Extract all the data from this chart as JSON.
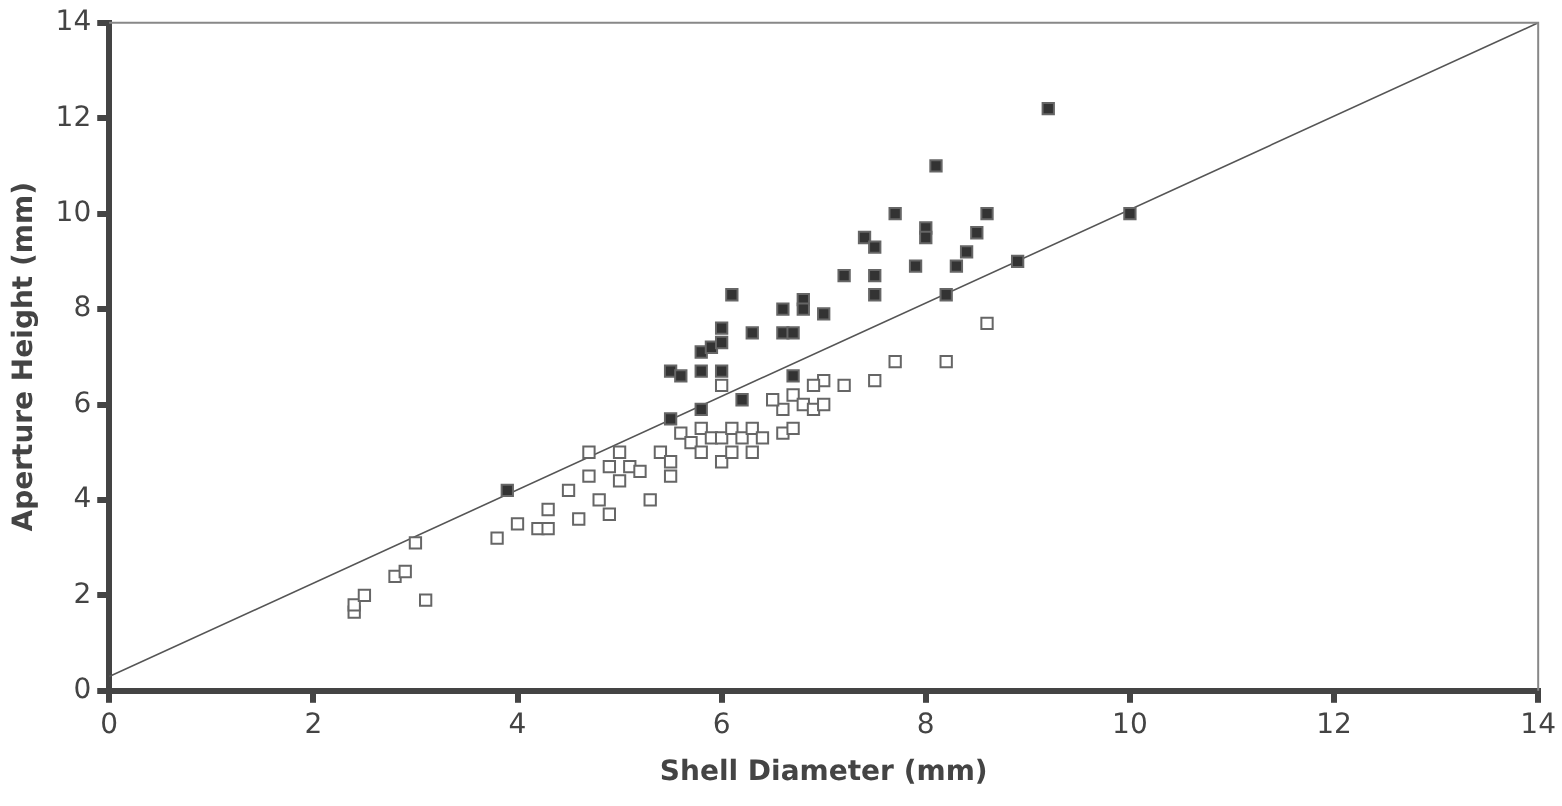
{
  "chart_data": {
    "type": "scatter",
    "xlabel": "Shell Diameter (mm)",
    "ylabel": "Aperture Height (mm)",
    "xlim": [
      0,
      14
    ],
    "ylim": [
      0,
      14
    ],
    "xticks": [
      0,
      2,
      4,
      6,
      8,
      10,
      12,
      14
    ],
    "yticks": [
      0,
      2,
      4,
      6,
      8,
      10,
      12,
      14
    ],
    "grid": false,
    "legend": false,
    "marker": "square",
    "series": [
      {
        "color": "#333333",
        "x": [
          3.9,
          5.5,
          5.5,
          5.6,
          5.8,
          5.8,
          5.9,
          6.0,
          6.0,
          6.0,
          6.1,
          6.2,
          6.3,
          5.8,
          6.6,
          6.6,
          6.7,
          6.8,
          6.8,
          6.7,
          7.0,
          7.2,
          7.4,
          7.5,
          7.5,
          7.5,
          7.7,
          7.9,
          8.0,
          8.0,
          8.1,
          8.2,
          8.3,
          8.4,
          8.5,
          8.6,
          8.9,
          9.2,
          10.0
        ],
        "values": [
          4.2,
          5.7,
          6.7,
          6.6,
          6.7,
          7.1,
          7.2,
          7.3,
          7.6,
          6.7,
          8.3,
          6.1,
          7.5,
          5.9,
          7.5,
          8.0,
          7.5,
          8.2,
          8.0,
          6.6,
          7.9,
          8.7,
          9.5,
          9.3,
          8.7,
          8.3,
          10.0,
          8.9,
          9.7,
          9.5,
          11.0,
          8.3,
          8.9,
          9.2,
          9.6,
          10.0,
          9.0,
          12.2,
          10.0
        ]
      },
      {
        "color": "#ffffff",
        "x": [
          2.4,
          2.4,
          2.5,
          2.8,
          2.9,
          3.0,
          3.1,
          3.8,
          4.0,
          4.2,
          4.3,
          4.3,
          4.5,
          4.6,
          4.7,
          4.7,
          4.8,
          4.9,
          4.9,
          5.0,
          5.0,
          5.1,
          5.2,
          5.3,
          5.4,
          5.5,
          5.5,
          5.6,
          5.7,
          5.8,
          5.8,
          5.9,
          6.0,
          6.0,
          6.1,
          6.1,
          6.2,
          6.3,
          6.3,
          6.4,
          6.6,
          6.6,
          6.7,
          6.7,
          6.8,
          6.9,
          7.0,
          7.0,
          7.2,
          7.5,
          7.7,
          8.2,
          8.6,
          6.0,
          6.5,
          6.9
        ],
        "values": [
          1.65,
          1.8,
          2.0,
          2.4,
          2.5,
          3.1,
          1.9,
          3.2,
          3.5,
          3.4,
          3.4,
          3.8,
          4.2,
          3.6,
          4.5,
          5.0,
          4.0,
          3.7,
          4.7,
          4.4,
          5.0,
          4.7,
          4.6,
          4.0,
          5.0,
          4.8,
          4.5,
          5.4,
          5.2,
          5.0,
          5.5,
          5.3,
          4.8,
          5.3,
          5.0,
          5.5,
          5.3,
          5.0,
          5.5,
          5.3,
          5.4,
          5.9,
          6.2,
          5.5,
          6.0,
          5.9,
          6.0,
          6.5,
          6.4,
          6.5,
          6.9,
          6.9,
          7.7,
          6.4,
          6.1,
          6.4
        ]
      },
      {
        "type": "line",
        "color": "#555555",
        "marker": "none",
        "x": [
          0,
          14
        ],
        "values": [
          0.3,
          14
        ]
      }
    ]
  }
}
